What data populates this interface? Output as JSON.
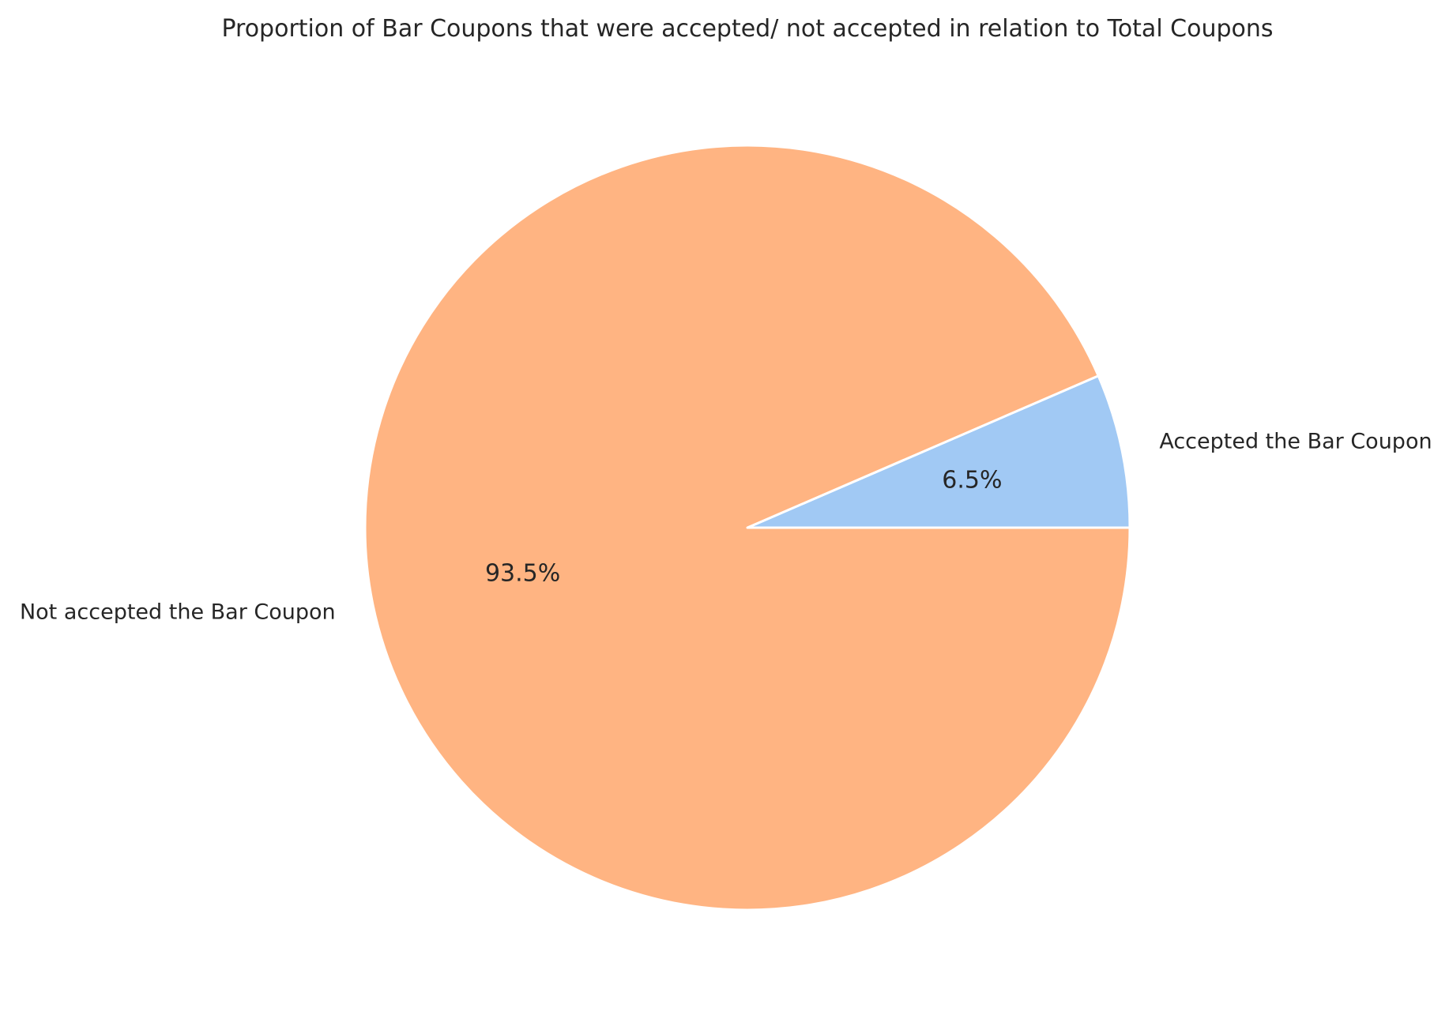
{
  "chart_data": {
    "type": "pie",
    "title": "Proportion of Bar Coupons that were accepted/ not accepted in relation to Total Coupons",
    "start_angle_deg": 0,
    "direction": "counterclockwise",
    "slices": [
      {
        "label": "Accepted the Bar Coupon",
        "value": 6.5,
        "pct_label": "6.5%",
        "color": "#a1c9f4"
      },
      {
        "label": "Not accepted the Bar Coupon",
        "value": 93.5,
        "pct_label": "93.5%",
        "color": "#ffb482"
      }
    ],
    "edge_color": "#ffffff"
  }
}
